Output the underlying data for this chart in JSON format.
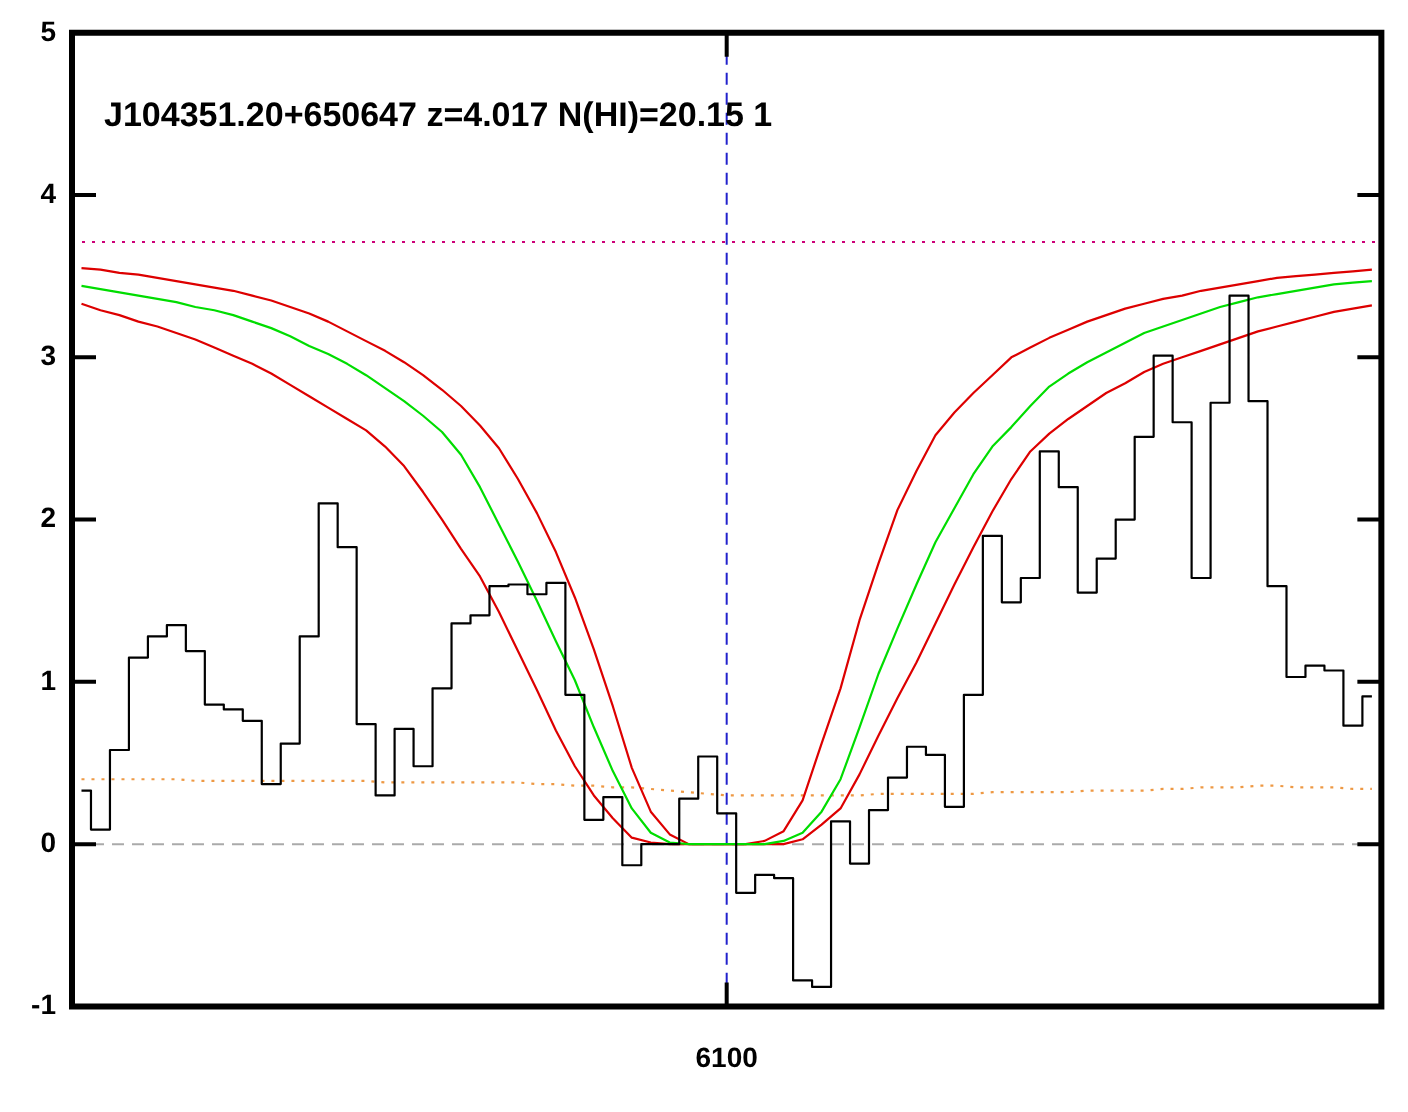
{
  "chart_data": {
    "type": "line",
    "annotations": [
      "J104351.20+650647 z=4.017 N(HI)=20.15 1"
    ],
    "categories": [
      null,
      null,
      null,
      null,
      null,
      null,
      null,
      null,
      null,
      null,
      null,
      null,
      null,
      null,
      null,
      null,
      null,
      null,
      null,
      null,
      null,
      null,
      null,
      null,
      null,
      null,
      null,
      null,
      null,
      null,
      null,
      null,
      null,
      null,
      "6100",
      null,
      null,
      null,
      null,
      null,
      null,
      null,
      null,
      null,
      null,
      null,
      null,
      null,
      null,
      null,
      null,
      null,
      null,
      null,
      null,
      null,
      null,
      null,
      null,
      null,
      null,
      null,
      null,
      null,
      null,
      null,
      null,
      null,
      null
    ],
    "ylim": [
      -1,
      5
    ],
    "yticks": [
      -1,
      0,
      1,
      2,
      3,
      4,
      5
    ],
    "grid": false,
    "legend": false,
    "marker": "none",
    "ref_lines": [
      {
        "axis": "y",
        "value": 3.71,
        "color": "#cc0077",
        "line_style": "dotted"
      },
      {
        "axis": "x",
        "color": "#2222cc",
        "line_style": "dashed"
      },
      {
        "axis": "y",
        "value": 0,
        "color": "#aaaaaa",
        "line_style": "dashed"
      }
    ],
    "series": [
      {
        "type": "step",
        "color": "#000000",
        "values": [
          0.33,
          0.09,
          0.58,
          1.15,
          1.28,
          1.35,
          1.19,
          0.86,
          0.83,
          0.76,
          0.37,
          0.62,
          1.28,
          2.1,
          1.83,
          0.74,
          0.3,
          0.71,
          0.48,
          0.96,
          1.36,
          1.41,
          1.59,
          1.6,
          1.54,
          1.61,
          0.92,
          0.15,
          0.29,
          -0.13,
          0,
          0,
          0.28,
          0.54,
          0.19,
          -0.3,
          -0.19,
          -0.21,
          -0.84,
          -0.88,
          0.14,
          -0.12,
          0.21,
          0.41,
          0.6,
          0.55,
          0.23,
          0.92,
          1.9,
          1.49,
          1.64,
          2.42,
          2.2,
          1.55,
          1.76,
          2.0,
          2.51,
          3.01,
          2.6,
          1.64,
          2.72,
          3.38,
          2.73,
          1.59,
          1.03,
          1.1,
          1.07,
          0.73,
          0.91
        ]
      },
      {
        "type": "line",
        "color": "#00dd00",
        "values": [
          3.44,
          3.42,
          3.4,
          3.38,
          3.36,
          3.34,
          3.31,
          3.29,
          3.26,
          3.22,
          3.18,
          3.13,
          3.07,
          3.02,
          2.96,
          2.89,
          2.81,
          2.73,
          2.64,
          2.54,
          2.4,
          2.2,
          1.97,
          1.74,
          1.5,
          1.25,
          1.01,
          0.72,
          0.45,
          0.22,
          0.07,
          0.01,
          0,
          0,
          0,
          0,
          0,
          0.02,
          0.07,
          0.2,
          0.4,
          0.72,
          1.05,
          1.33,
          1.6,
          1.86,
          2.07,
          2.28,
          2.45,
          2.57,
          2.7,
          2.82,
          2.9,
          2.97,
          3.03,
          3.09,
          3.15,
          3.19,
          3.23,
          3.27,
          3.31,
          3.34,
          3.37,
          3.39,
          3.41,
          3.43,
          3.45,
          3.46,
          3.47
        ]
      },
      {
        "type": "line",
        "color": "#dd0000",
        "values": [
          3.55,
          3.54,
          3.52,
          3.51,
          3.49,
          3.47,
          3.45,
          3.43,
          3.41,
          3.38,
          3.35,
          3.31,
          3.27,
          3.22,
          3.16,
          3.1,
          3.04,
          2.97,
          2.89,
          2.8,
          2.7,
          2.58,
          2.44,
          2.25,
          2.04,
          1.8,
          1.52,
          1.2,
          0.85,
          0.47,
          0.2,
          0.06,
          0,
          0,
          0,
          0,
          0.02,
          0.08,
          0.27,
          0.62,
          0.96,
          1.38,
          1.73,
          2.06,
          2.3,
          2.52,
          2.66,
          2.78,
          2.89,
          3.0,
          3.06,
          3.12,
          3.17,
          3.22,
          3.26,
          3.3,
          3.33,
          3.36,
          3.38,
          3.41,
          3.43,
          3.45,
          3.47,
          3.49,
          3.5,
          3.51,
          3.52,
          3.53,
          3.54
        ]
      },
      {
        "type": "line",
        "color": "#dd0000",
        "values": [
          3.33,
          3.29,
          3.26,
          3.22,
          3.19,
          3.15,
          3.11,
          3.06,
          3.01,
          2.96,
          2.9,
          2.83,
          2.76,
          2.69,
          2.62,
          2.55,
          2.45,
          2.33,
          2.17,
          2.0,
          1.82,
          1.65,
          1.43,
          1.19,
          0.95,
          0.7,
          0.48,
          0.3,
          0.16,
          0.04,
          0.01,
          0,
          0,
          0,
          0,
          0,
          0,
          0,
          0.03,
          0.12,
          0.22,
          0.43,
          0.67,
          0.9,
          1.12,
          1.36,
          1.6,
          1.83,
          2.05,
          2.25,
          2.42,
          2.53,
          2.62,
          2.7,
          2.78,
          2.84,
          2.91,
          2.96,
          3.0,
          3.04,
          3.08,
          3.12,
          3.16,
          3.19,
          3.22,
          3.25,
          3.28,
          3.3,
          3.32
        ]
      },
      {
        "type": "line",
        "color": "#ee9944",
        "line_style": "dotted",
        "values": [
          0.4,
          0.4,
          0.4,
          0.4,
          0.4,
          0.4,
          0.39,
          0.39,
          0.39,
          0.39,
          0.39,
          0.39,
          0.39,
          0.39,
          0.39,
          0.39,
          0.38,
          0.38,
          0.38,
          0.38,
          0.38,
          0.38,
          0.38,
          0.38,
          0.37,
          0.37,
          0.36,
          0.36,
          0.35,
          0.35,
          0.34,
          0.33,
          0.32,
          0.31,
          0.3,
          0.3,
          0.3,
          0.3,
          0.3,
          0.3,
          0.3,
          0.3,
          0.31,
          0.31,
          0.31,
          0.31,
          0.31,
          0.31,
          0.32,
          0.32,
          0.32,
          0.32,
          0.32,
          0.33,
          0.33,
          0.33,
          0.33,
          0.34,
          0.34,
          0.35,
          0.35,
          0.35,
          0.36,
          0.36,
          0.35,
          0.35,
          0.35,
          0.34,
          0.34
        ]
      }
    ]
  }
}
